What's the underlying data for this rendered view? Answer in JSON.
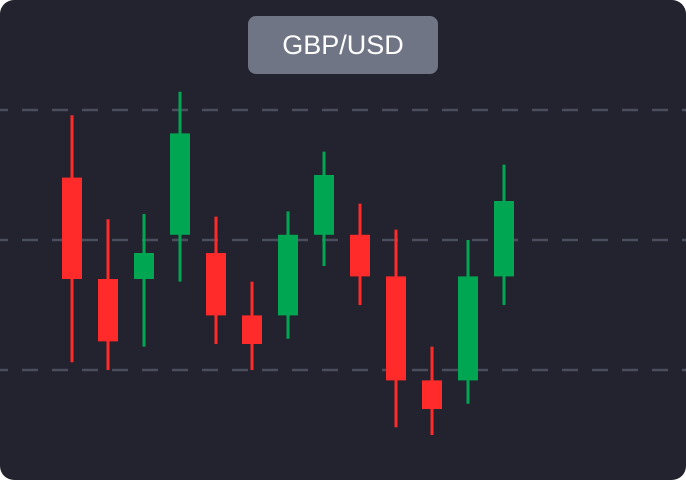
{
  "title": "GBP/USD",
  "colors": {
    "background": "#22232f",
    "badge": "#707585",
    "bullish": "#00a651",
    "bearish": "#ff2a2a",
    "gridline": "#4a4d5c"
  },
  "chart_data": {
    "type": "candlestick",
    "title": "GBP/USD",
    "grid": true,
    "y_axis_visible": false,
    "levels": [
      100,
      50,
      0
    ],
    "ylim": [
      -40,
      140
    ],
    "candles": [
      {
        "open": 74,
        "high": 98,
        "low": 3,
        "close": 35
      },
      {
        "open": 35,
        "high": 58,
        "low": 0,
        "close": 11
      },
      {
        "open": 35,
        "high": 60,
        "low": 9,
        "close": 45
      },
      {
        "open": 52,
        "high": 107,
        "low": 34,
        "close": 91
      },
      {
        "open": 45,
        "high": 59,
        "low": 10,
        "close": 21
      },
      {
        "open": 21,
        "high": 34,
        "low": 0,
        "close": 10
      },
      {
        "open": 21,
        "high": 61,
        "low": 12,
        "close": 52
      },
      {
        "open": 52,
        "high": 84,
        "low": 40,
        "close": 75
      },
      {
        "open": 52,
        "high": 64,
        "low": 25,
        "close": 36
      },
      {
        "open": 36,
        "high": 54,
        "low": -22,
        "close": -4
      },
      {
        "open": -4,
        "high": 9,
        "low": -25,
        "close": -15
      },
      {
        "open": -4,
        "high": 50,
        "low": -13,
        "close": 36
      },
      {
        "open": 36,
        "high": 79,
        "low": 25,
        "close": 65
      }
    ]
  }
}
